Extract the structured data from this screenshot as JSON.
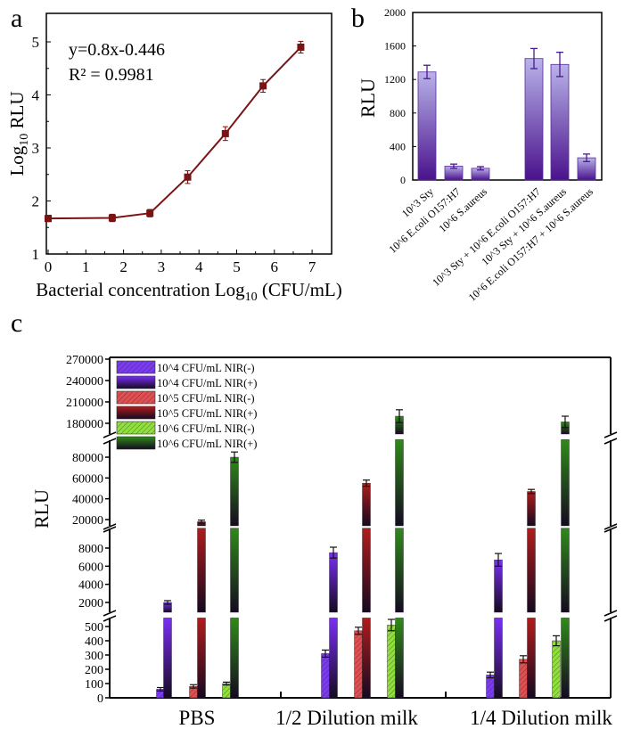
{
  "panel_labels": {
    "a": "a",
    "b": "b",
    "c": "c"
  },
  "chart_data": [
    {
      "type": "line",
      "panel": "a",
      "xlabel_parts": [
        "Bacterial concentration Log",
        "10",
        " (CFU/mL)"
      ],
      "ylabel_parts": [
        "Log",
        "10",
        " RLU"
      ],
      "xlim": [
        0,
        7.3
      ],
      "ylim": [
        1,
        5.4
      ],
      "xticks": [
        "0",
        "1",
        "2",
        "3",
        "4",
        "5",
        "6",
        "7"
      ],
      "yticks": [
        "1",
        "2",
        "3",
        "4",
        "5"
      ],
      "annotation": [
        "y=0.8x-0.446",
        "R² = 0.9981"
      ],
      "color": "#7a1414",
      "x": [
        0,
        1.7,
        2.7,
        3.7,
        4.7,
        5.7,
        6.7
      ],
      "y": [
        1.67,
        1.68,
        1.77,
        2.45,
        3.27,
        4.17,
        4.9
      ],
      "error": [
        0.06,
        0.07,
        0.07,
        0.12,
        0.13,
        0.12,
        0.11
      ]
    },
    {
      "type": "bar",
      "panel": "b",
      "ylabel": "RLU",
      "ylim": [
        0,
        2000
      ],
      "yticks": [
        "0",
        "400",
        "800",
        "1200",
        "1600",
        "2000"
      ],
      "categories": [
        "10^3 Sty",
        "10^6 E.coli O157:H7",
        "10^6 S.aureus",
        "10^3 Sty + 10^6 E.coli O157:H7",
        "10^3 Sty + 10^6 S.aureus",
        "10^6 E.coli O157:H7 + 10^6 S.aureus"
      ],
      "values": [
        1290,
        165,
        140,
        1450,
        1380,
        265
      ],
      "error": [
        80,
        25,
        20,
        120,
        145,
        45
      ],
      "colors": {
        "top": "#b9b3ea",
        "bottom": "#4a128c",
        "edge": "#5a2a9a"
      }
    },
    {
      "type": "bar",
      "panel": "c",
      "ylabel": "RLU",
      "broken_axis": true,
      "categories": [
        "PBS",
        "1/2 Dilution milk",
        "1/4 Dilution milk"
      ],
      "yticks": [
        "0",
        "100",
        "200",
        "300",
        "400",
        "500",
        "2000",
        "4000",
        "6000",
        "8000",
        "20000",
        "40000",
        "60000",
        "80000",
        "180000",
        "210000",
        "240000",
        "270000"
      ],
      "legend_position": "top-left",
      "series": [
        {
          "name": "10^4 CFU/mL NIR(-)",
          "values": [
            60,
            310,
            160
          ],
          "error": [
            12,
            25,
            20
          ],
          "color": "#7a3cf0",
          "hatched": true
        },
        {
          "name": "10^4 CFU/mL NIR(+)",
          "values": [
            2000,
            7500,
            6700
          ],
          "error": [
            200,
            600,
            700
          ],
          "color": "#7a2ef5",
          "hatched": false
        },
        {
          "name": "10^5 CFU/mL NIR(-)",
          "values": [
            80,
            470,
            270
          ],
          "error": [
            12,
            25,
            25
          ],
          "color": "#e05050",
          "hatched": true
        },
        {
          "name": "10^5 CFU/mL NIR(+)",
          "values": [
            18000,
            55000,
            47000
          ],
          "error": [
            1500,
            3000,
            2000
          ],
          "color": "#b01c1c",
          "hatched": false
        },
        {
          "name": "10^6 CFU/mL NIR(-)",
          "values": [
            100,
            510,
            400
          ],
          "error": [
            10,
            40,
            35
          ],
          "color": "#8ee03a",
          "hatched": true
        },
        {
          "name": "10^6 CFU/mL NIR(+)",
          "values": [
            80000,
            190000,
            182000
          ],
          "error": [
            5000,
            9000,
            8000
          ],
          "color": "#2f8a1a",
          "hatched": false
        }
      ]
    }
  ]
}
